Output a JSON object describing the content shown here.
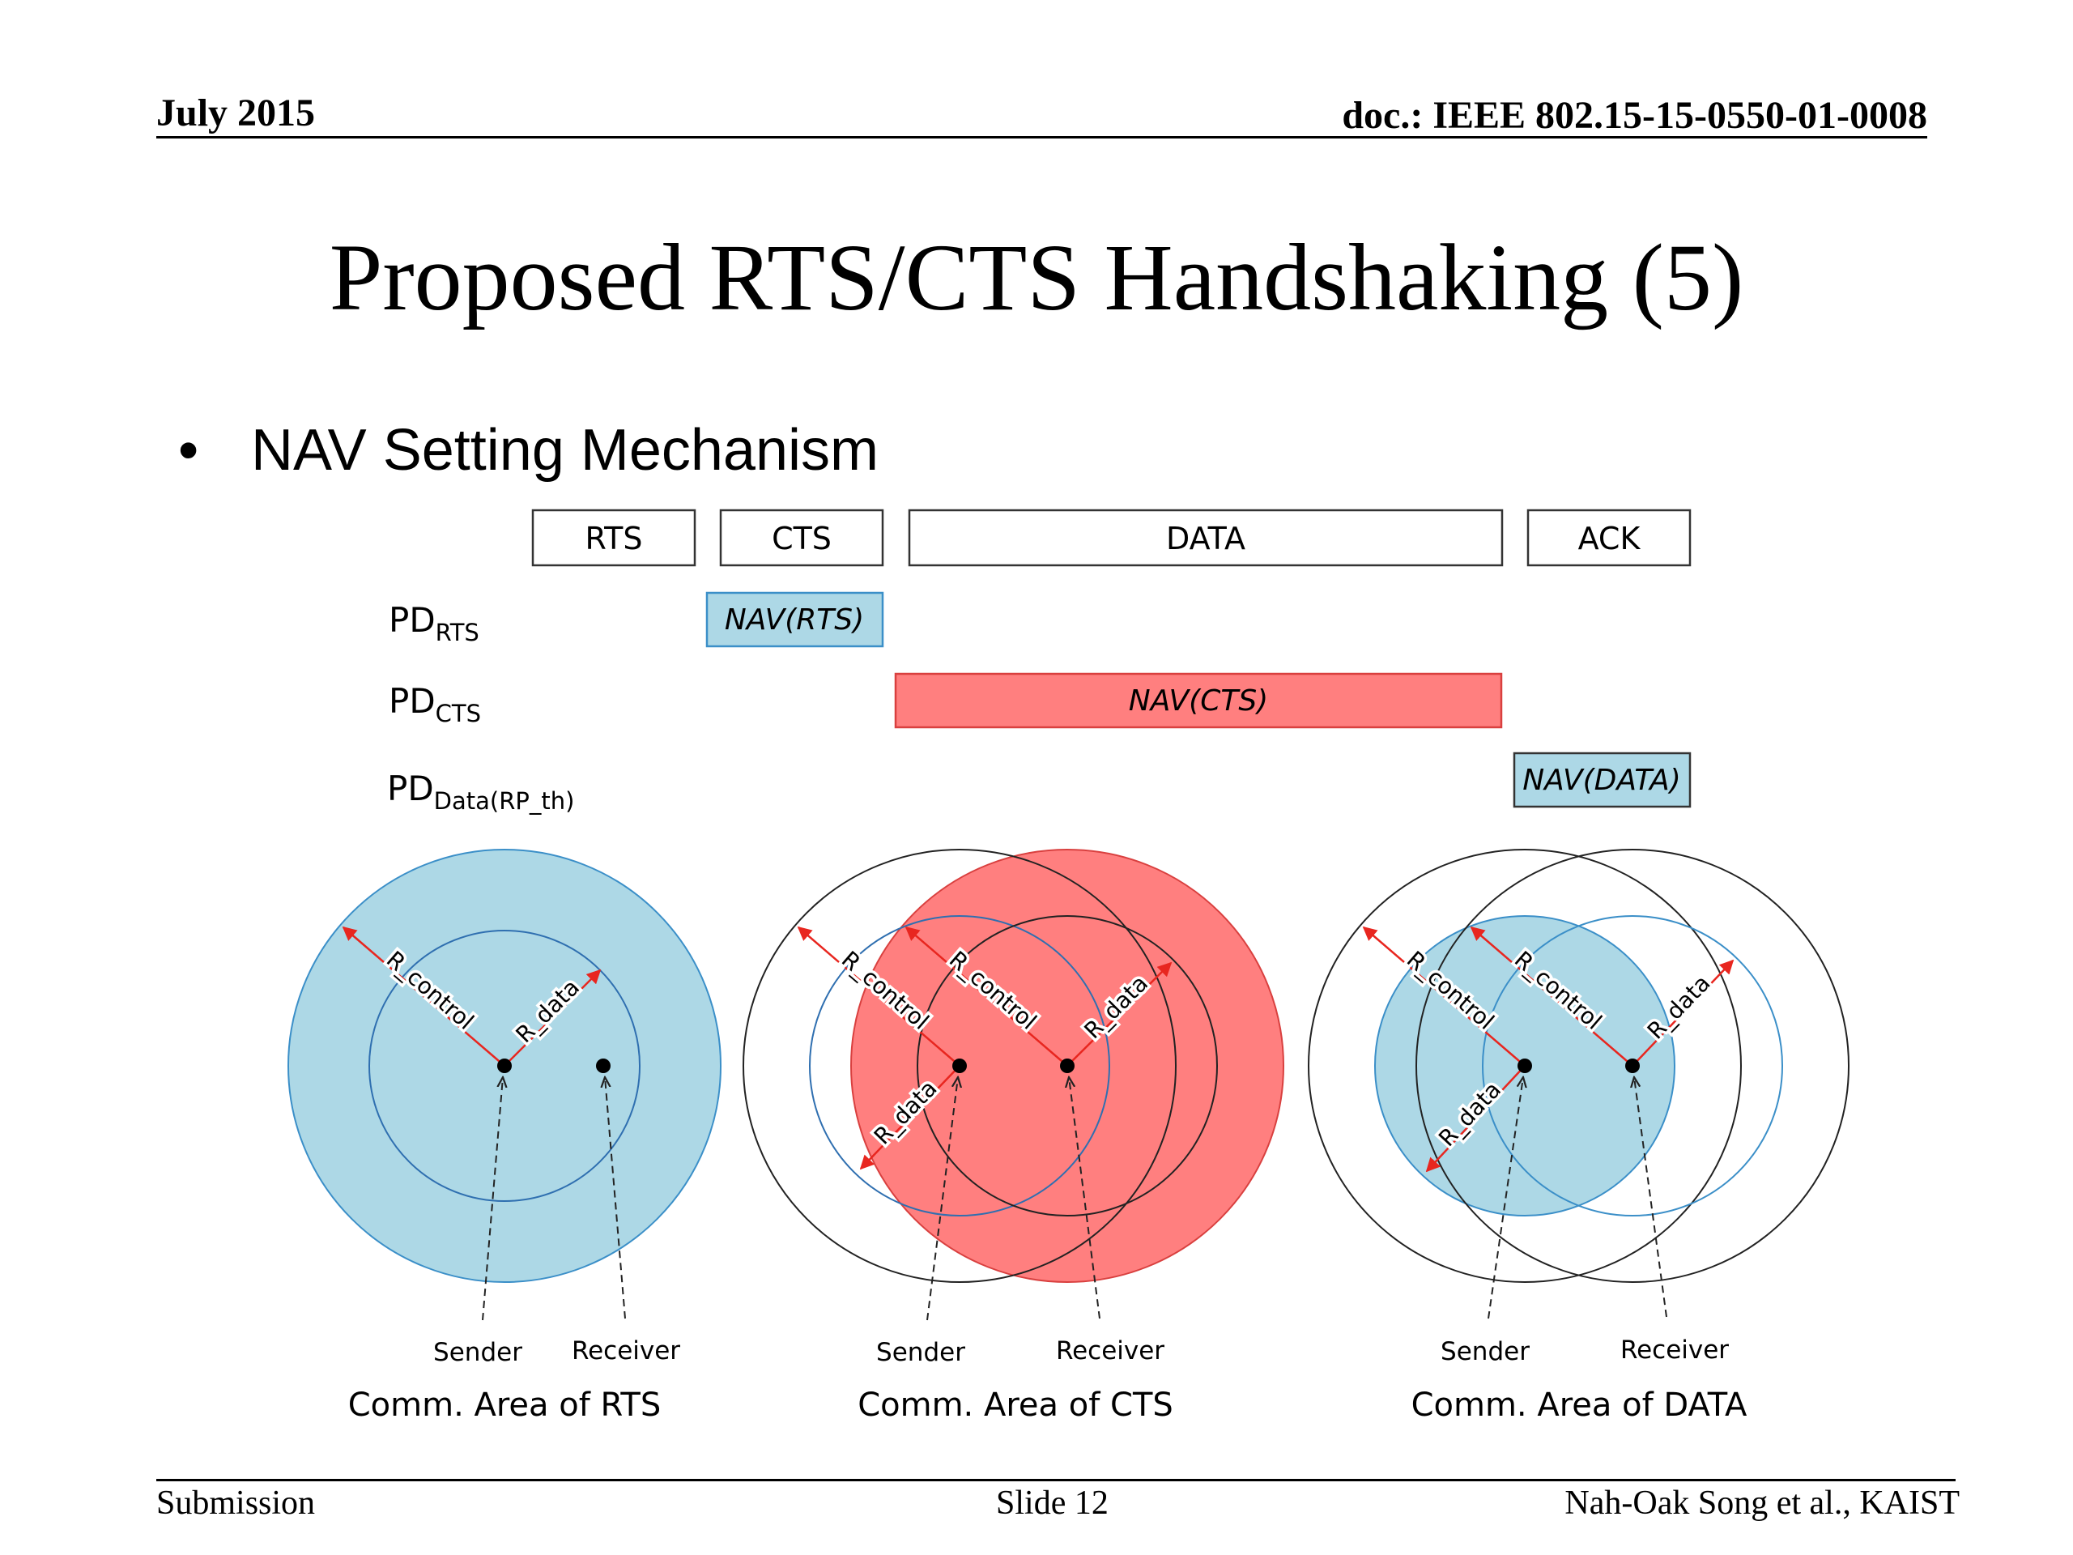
{
  "header": {
    "date": "July 2015",
    "doc_id": "doc.: IEEE 802.15-15-0550-01-0008"
  },
  "title": "Proposed RTS/CTS Handshaking (5)",
  "bullet": {
    "marker": "•",
    "text": "NAV Setting Mechanism"
  },
  "frames": {
    "rts": "RTS",
    "cts": "CTS",
    "data": "DATA",
    "ack": "ACK"
  },
  "rows": {
    "rts": {
      "main": "PD",
      "sub": "RTS",
      "nav": "NAV(RTS)"
    },
    "cts": {
      "main": "PD",
      "sub": "CTS",
      "nav": "NAV(CTS)"
    },
    "data": {
      "main": "PD",
      "sub": "Data(RP_th)",
      "nav": "NAV(DATA)"
    }
  },
  "labels": {
    "r_control": "R_control",
    "r_data": "R_data",
    "sender": "Sender",
    "receiver": "Receiver"
  },
  "captions": {
    "rts": "Comm. Area of RTS",
    "cts": "Comm. Area of CTS",
    "data": "Comm. Area of DATA"
  },
  "footer": {
    "left": "Submission",
    "center": "Slide 12",
    "right": "Nah-Oak Song et al., KAIST"
  },
  "colors": {
    "light_blue": "#add8e6",
    "blue_stroke": "#3b8fc8",
    "red_fill": "#ff7f7f",
    "red_stroke": "#d9403f",
    "arrow_red": "#e8261f"
  }
}
